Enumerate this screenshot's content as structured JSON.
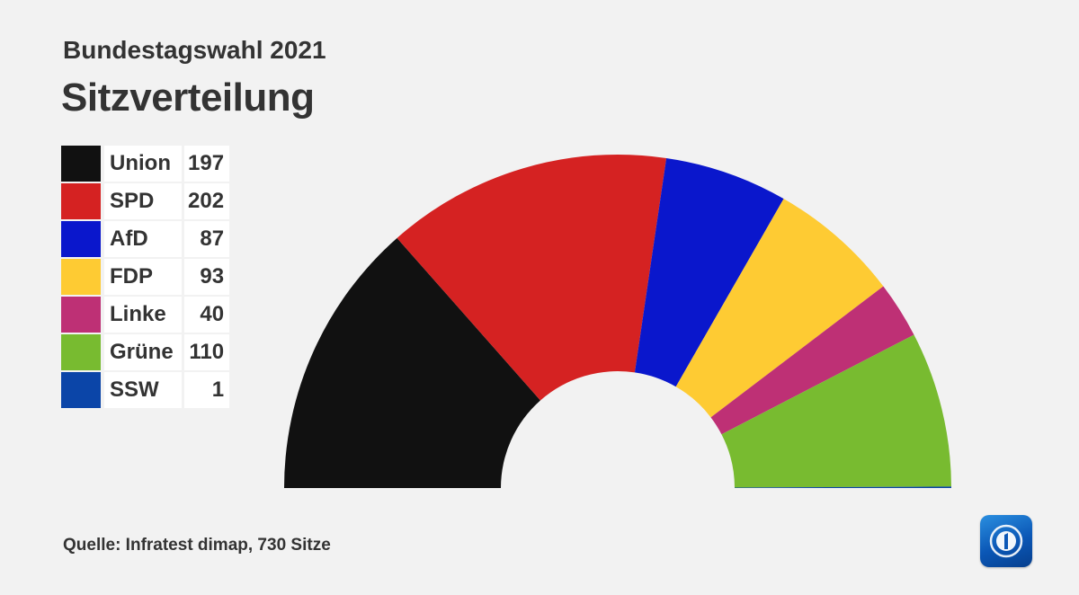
{
  "header": {
    "subtitle": "Bundestagswahl 2021",
    "title": "Sitzverteilung"
  },
  "footer": {
    "source": "Quelle: Infratest dimap, 730 Sitze"
  },
  "logo": {
    "icon": "tagesschau-logo-icon"
  },
  "chart_data": {
    "type": "pie",
    "variant": "semicircle-parliament",
    "title": "Sitzverteilung",
    "subtitle": "Bundestagswahl 2021",
    "total": 730,
    "legend_position": "left",
    "slices": [
      {
        "name": "Union",
        "value": 197,
        "color": "#111111"
      },
      {
        "name": "SPD",
        "value": 202,
        "color": "#d52222"
      },
      {
        "name": "AfD",
        "value": 87,
        "color": "#0a17cc"
      },
      {
        "name": "FDP",
        "value": 93,
        "color": "#fecb33"
      },
      {
        "name": "Linke",
        "value": 40,
        "color": "#be3075"
      },
      {
        "name": "Grüne",
        "value": 110,
        "color": "#78bb30"
      },
      {
        "name": "SSW",
        "value": 1,
        "color": "#0b45a8"
      }
    ]
  }
}
